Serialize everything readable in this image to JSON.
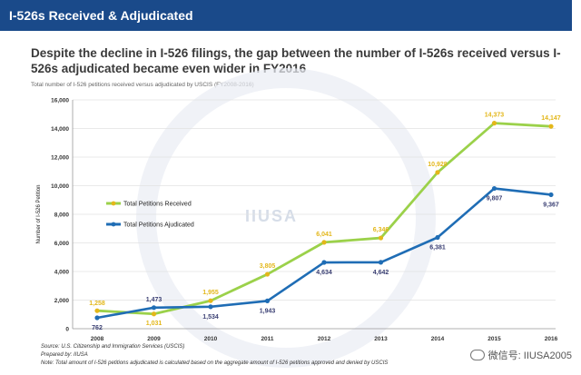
{
  "banner": {
    "title": "I-526s Received & Adjudicated"
  },
  "headline": "Despite the decline in I-526 filings, the gap between the number of I-526s received versus I-526s adjudicated became even wider in FY2016",
  "watermark": {
    "text": "IIUSA"
  },
  "notes": {
    "source": "Source: U.S. Citizenship and Immigration Services (USCIS)",
    "prepared": "Prepared by: IIUSA",
    "note": "Note: Total amount of I-526 petitions adjudicated is calculated based on the aggregate amount of I-526 petitions approved and denied by USCIS"
  },
  "wechat": {
    "label": "微信号: IIUSA2005"
  },
  "colors": {
    "banner": "#1a4a8a",
    "received": "#9bd14a",
    "adjudicated": "#1f6db5",
    "received_label": "#e3b71a",
    "adjudicated_label": "#3a3f73"
  },
  "chart_data": {
    "type": "line",
    "title": "Total number of I-526 petitions received versus adjudicated by USCIS (FY2008-2016)",
    "ylabel": "Number of I-526 Petition",
    "xlabel": "",
    "categories": [
      "2008",
      "2009",
      "2010",
      "2011",
      "2012",
      "2013",
      "2014",
      "2015",
      "2016"
    ],
    "yticks": [
      "0",
      "2,000",
      "4,000",
      "6,000",
      "8,000",
      "10,000",
      "12,000",
      "14,000",
      "16,000"
    ],
    "ylim": [
      0,
      16000
    ],
    "grid": true,
    "legend_position": "middle-left",
    "series": [
      {
        "name": "Total Petitions Received",
        "values": [
          1258,
          1031,
          1955,
          3805,
          6041,
          6346,
          10928,
          14373,
          14147
        ],
        "labels": [
          "1,258",
          "1,031",
          "1,955",
          "3,805",
          "6,041",
          "6,346",
          "10,928",
          "14,373",
          "14,147"
        ]
      },
      {
        "name": "Total Petitions Ajudicated",
        "values": [
          762,
          1473,
          1534,
          1943,
          4634,
          4642,
          6381,
          9807,
          9367
        ],
        "labels": [
          "762",
          "1,473",
          "1,534",
          "1,943",
          "4,634",
          "4,642",
          "6,381",
          "9,807",
          "9,367"
        ]
      }
    ]
  }
}
